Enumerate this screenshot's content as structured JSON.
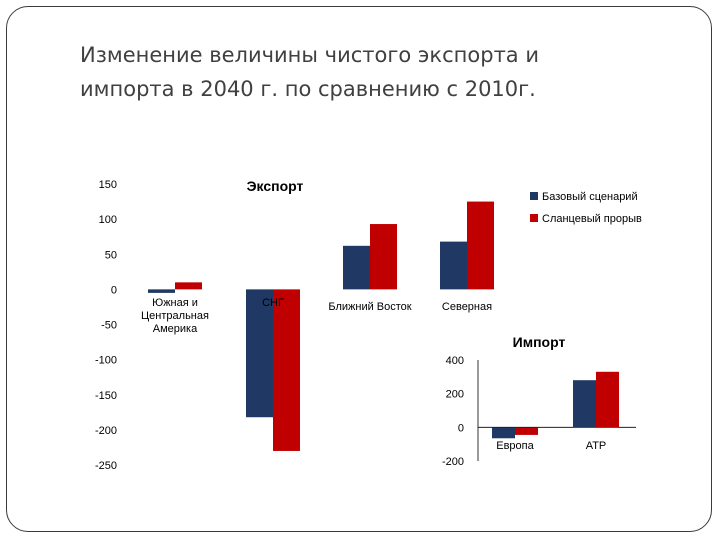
{
  "slide": {
    "title_line1": "Изменение величины чистого экспорта и",
    "title_line2": "импорта в 2040 г. по сравнению с 2010г."
  },
  "colors": {
    "base": "#1f3864",
    "shale": "#c00000"
  },
  "chart_data": [
    {
      "type": "bar",
      "title": "Экспорт",
      "categories": [
        [
          "Южная и",
          "Центральная",
          "Америка"
        ],
        [
          "СНГ"
        ],
        [
          "Ближний Восток"
        ],
        [
          "Северная"
        ]
      ],
      "series": [
        {
          "name": "Базовый сценарий",
          "values": [
            -5,
            -182,
            62,
            68
          ]
        },
        {
          "name": "Сланцевый прорыв",
          "values": [
            10,
            -230,
            93,
            125
          ]
        }
      ],
      "ylim": [
        -250,
        150
      ],
      "yticks": [
        150,
        100,
        50,
        0,
        -50,
        -100,
        -150,
        -200,
        -250
      ],
      "legend": "top-right"
    },
    {
      "type": "bar",
      "title": "Импорт",
      "categories": [
        [
          "Европа"
        ],
        [
          "АТР"
        ]
      ],
      "series": [
        {
          "name": "Базовый сценарий",
          "values": [
            -65,
            280
          ]
        },
        {
          "name": "Сланцевый прорыв",
          "values": [
            -45,
            330
          ]
        }
      ],
      "ylim": [
        -200,
        400
      ],
      "yticks": [
        400,
        200,
        0,
        -200
      ]
    }
  ]
}
